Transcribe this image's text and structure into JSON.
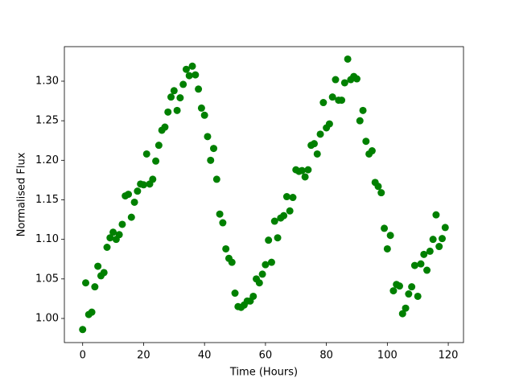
{
  "chart_data": {
    "type": "scatter",
    "xlabel": "Time (Hours)",
    "ylabel": "Normalised Flux",
    "color": "#008000",
    "xlim": [
      -6,
      125
    ],
    "ylim": [
      0.9695,
      1.3437
    ],
    "xticks": [
      0,
      20,
      40,
      60,
      80,
      100,
      120
    ],
    "yticks": [
      {
        "value": 1.0,
        "label": "1.00"
      },
      1.05,
      {
        "value": 1.1,
        "label": "1.10"
      },
      1.15,
      {
        "value": 1.2,
        "label": "1.20"
      },
      1.25,
      {
        "value": 1.3,
        "label": "1.30"
      }
    ],
    "x": [
      0,
      1,
      2,
      3,
      4,
      5,
      6,
      7,
      8,
      9,
      10,
      11,
      12,
      13,
      14,
      15,
      16,
      17,
      18,
      19,
      20,
      21,
      22,
      23,
      24,
      25,
      26,
      27,
      28,
      29,
      30,
      31,
      32,
      33,
      34,
      35,
      36,
      37,
      38,
      39,
      40,
      41,
      42,
      43,
      44,
      45,
      46,
      47,
      48,
      49,
      50,
      51,
      52,
      53,
      54,
      55,
      56,
      57,
      58,
      59,
      60,
      61,
      62,
      63,
      64,
      65,
      66,
      67,
      68,
      69,
      70,
      71,
      72,
      73,
      74,
      75,
      76,
      77,
      78,
      79,
      80,
      81,
      82,
      83,
      84,
      85,
      86,
      87,
      88,
      89,
      90,
      91,
      92,
      93,
      94,
      95,
      96,
      97,
      98,
      99,
      100,
      101,
      102,
      103,
      104,
      105,
      106,
      107,
      108,
      109,
      110,
      111,
      112,
      113,
      114,
      115,
      116,
      117,
      118,
      119
    ],
    "values": [
      0.986,
      1.045,
      1.005,
      1.008,
      1.04,
      1.066,
      1.054,
      1.058,
      1.09,
      1.102,
      1.109,
      1.1,
      1.106,
      1.119,
      1.155,
      1.157,
      1.128,
      1.147,
      1.161,
      1.17,
      1.169,
      1.208,
      1.17,
      1.176,
      1.199,
      1.219,
      1.238,
      1.242,
      1.261,
      1.28,
      1.288,
      1.263,
      1.279,
      1.296,
      1.315,
      1.307,
      1.319,
      1.308,
      1.29,
      1.266,
      1.257,
      1.23,
      1.2,
      1.215,
      1.176,
      1.132,
      1.121,
      1.088,
      1.076,
      1.071,
      1.032,
      1.015,
      1.014,
      1.017,
      1.022,
      1.022,
      1.028,
      1.05,
      1.045,
      1.056,
      1.068,
      1.099,
      1.071,
      1.123,
      1.102,
      1.127,
      1.13,
      1.154,
      1.136,
      1.153,
      1.188,
      1.186,
      1.187,
      1.179,
      1.188,
      1.219,
      1.221,
      1.208,
      1.233,
      1.273,
      1.241,
      1.246,
      1.28,
      1.302,
      1.276,
      1.276,
      1.298,
      1.328,
      1.302,
      1.306,
      1.303,
      1.25,
      1.263,
      1.224,
      1.208,
      1.212,
      1.172,
      1.167,
      1.159,
      1.114,
      1.088,
      1.105,
      1.035,
      1.043,
      1.041,
      1.006,
      1.013,
      1.031,
      1.04,
      1.067,
      1.028,
      1.069,
      1.081,
      1.061,
      1.085,
      1.1,
      1.131,
      1.091,
      1.101,
      1.115
    ]
  }
}
